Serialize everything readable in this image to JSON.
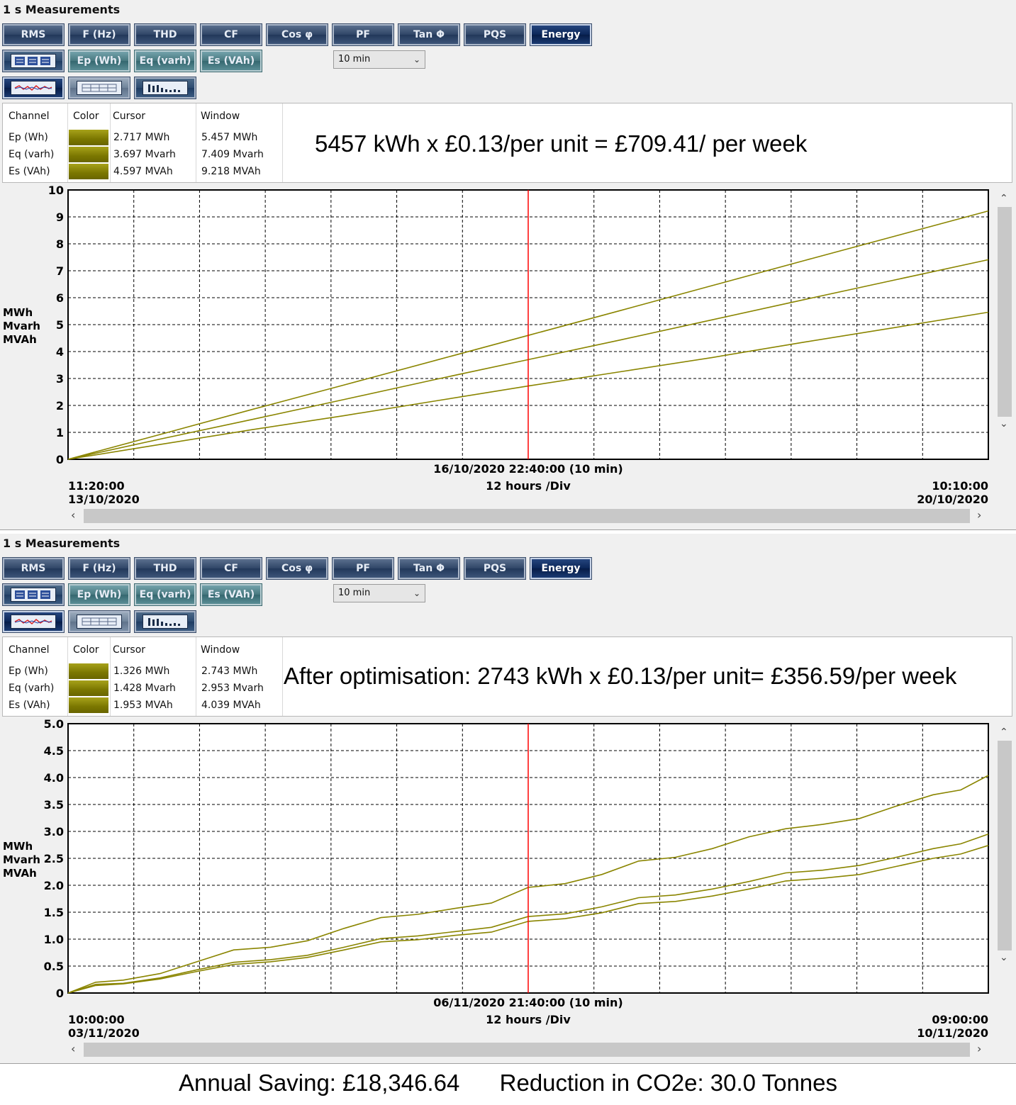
{
  "panels": [
    {
      "title": "1 s Measurements",
      "tabs": [
        "RMS",
        "F (Hz)",
        "THD",
        "CF",
        "Cos φ",
        "PF",
        "Tan Φ",
        "PQS",
        "Energy"
      ],
      "active_tab": "Energy",
      "sub_buttons": [
        "Ep (Wh)",
        "Eq (varh)",
        "Es (VAh)"
      ],
      "interval": "10 min",
      "table": {
        "headers": {
          "channel": "Channel",
          "color": "Color",
          "cursor": "Cursor",
          "window": "Window"
        },
        "rows": [
          {
            "channel": "Ep (Wh)",
            "cursor": "2.717 MWh",
            "window": "5.457 MWh"
          },
          {
            "channel": "Eq (varh)",
            "cursor": "3.697 Mvarh",
            "window": "7.409 Mvarh"
          },
          {
            "channel": "Es (VAh)",
            "cursor": "4.597 MVAh",
            "window": "9.218 MVAh"
          }
        ]
      },
      "annotation": "5457 kWh x £0.13/per unit = £709.41/ per week",
      "chart_data": {
        "type": "line",
        "ylim": [
          0,
          10
        ],
        "yticks": [
          "0",
          "1",
          "2",
          "3",
          "4",
          "5",
          "6",
          "7",
          "8",
          "9",
          "10"
        ],
        "ylabel": [
          "MWh",
          "Mvarh",
          "MVAh"
        ],
        "x_start": {
          "time": "11:20:00",
          "date": "13/10/2020"
        },
        "x_end": {
          "time": "10:10:00",
          "date": "20/10/2020"
        },
        "cursor_label": "16/10/2020 22:40:00 (10 min)",
        "cursor_fraction": 0.5,
        "div_label": "12 hours /Div",
        "line_color": "#8a8500",
        "cursor_color": "#ff0000",
        "series": [
          {
            "name": "Ep (Wh)",
            "x": [
              0,
              0.1,
              0.2,
              0.3,
              0.4,
              0.5,
              0.6,
              0.7,
              0.8,
              0.9,
              1
            ],
            "values": [
              0,
              0.55,
              1.1,
              1.62,
              2.17,
              2.72,
              3.25,
              3.78,
              4.35,
              4.9,
              5.46
            ]
          },
          {
            "name": "Eq (varh)",
            "x": [
              0,
              0.1,
              0.2,
              0.3,
              0.4,
              0.5,
              0.6,
              0.7,
              0.8,
              0.9,
              1
            ],
            "values": [
              0,
              0.75,
              1.48,
              2.22,
              2.97,
              3.7,
              4.43,
              5.18,
              5.93,
              6.67,
              7.41
            ]
          },
          {
            "name": "Es (VAh)",
            "x": [
              0,
              0.1,
              0.2,
              0.3,
              0.4,
              0.5,
              0.6,
              0.7,
              0.8,
              0.9,
              1
            ],
            "values": [
              0,
              0.92,
              1.85,
              2.76,
              3.68,
              4.6,
              5.52,
              6.45,
              7.38,
              8.3,
              9.22
            ]
          }
        ]
      }
    },
    {
      "title": "1 s Measurements",
      "tabs": [
        "RMS",
        "F (Hz)",
        "THD",
        "CF",
        "Cos φ",
        "PF",
        "Tan Φ",
        "PQS",
        "Energy"
      ],
      "active_tab": "Energy",
      "sub_buttons": [
        "Ep (Wh)",
        "Eq (varh)",
        "Es (VAh)"
      ],
      "interval": "10 min",
      "table": {
        "headers": {
          "channel": "Channel",
          "color": "Color",
          "cursor": "Cursor",
          "window": "Window"
        },
        "rows": [
          {
            "channel": "Ep (Wh)",
            "cursor": "1.326 MWh",
            "window": "2.743 MWh"
          },
          {
            "channel": "Eq (varh)",
            "cursor": "1.428 Mvarh",
            "window": "2.953 Mvarh"
          },
          {
            "channel": "Es (VAh)",
            "cursor": "1.953 MVAh",
            "window": "4.039 MVAh"
          }
        ]
      },
      "annotation": "After optimisation: 2743 kWh x £0.13/per unit= £356.59/per week",
      "chart_data": {
        "type": "line",
        "ylim": [
          0,
          5
        ],
        "yticks": [
          "0",
          "0.5",
          "1.0",
          "1.5",
          "2.0",
          "2.5",
          "3.0",
          "3.5",
          "4.0",
          "4.5",
          "5.0"
        ],
        "ylabel": [
          "MWh",
          "Mvarh",
          "MVAh"
        ],
        "x_start": {
          "time": "10:00:00",
          "date": "03/11/2020"
        },
        "x_end": {
          "time": "09:00:00",
          "date": "10/11/2020"
        },
        "cursor_label": "06/11/2020 21:40:00 (10 min)",
        "cursor_fraction": 0.5,
        "div_label": "12 hours /Div",
        "line_color": "#8a8500",
        "cursor_color": "#ff0000",
        "series": [
          {
            "name": "Ep (Wh)",
            "x": [
              0,
              0.03,
              0.06,
              0.1,
              0.14,
              0.18,
              0.22,
              0.26,
              0.3,
              0.34,
              0.38,
              0.42,
              0.46,
              0.5,
              0.54,
              0.58,
              0.62,
              0.66,
              0.7,
              0.74,
              0.78,
              0.82,
              0.86,
              0.9,
              0.94,
              0.97,
              1
            ],
            "values": [
              0,
              0.14,
              0.17,
              0.26,
              0.4,
              0.53,
              0.58,
              0.66,
              0.8,
              0.95,
              0.99,
              1.07,
              1.13,
              1.33,
              1.38,
              1.49,
              1.66,
              1.7,
              1.8,
              1.93,
              2.08,
              2.13,
              2.2,
              2.35,
              2.5,
              2.58,
              2.74
            ]
          },
          {
            "name": "Eq (varh)",
            "x": [
              0,
              0.03,
              0.06,
              0.1,
              0.14,
              0.18,
              0.22,
              0.26,
              0.3,
              0.34,
              0.38,
              0.42,
              0.46,
              0.5,
              0.54,
              0.58,
              0.62,
              0.66,
              0.7,
              0.74,
              0.78,
              0.82,
              0.86,
              0.9,
              0.94,
              0.97,
              1
            ],
            "values": [
              0,
              0.16,
              0.18,
              0.28,
              0.43,
              0.57,
              0.62,
              0.7,
              0.85,
              1.01,
              1.06,
              1.14,
              1.22,
              1.42,
              1.47,
              1.6,
              1.77,
              1.82,
              1.93,
              2.07,
              2.23,
              2.28,
              2.37,
              2.52,
              2.68,
              2.77,
              2.95
            ]
          },
          {
            "name": "Es (VAh)",
            "x": [
              0,
              0.03,
              0.06,
              0.1,
              0.14,
              0.18,
              0.22,
              0.26,
              0.3,
              0.34,
              0.38,
              0.42,
              0.46,
              0.5,
              0.54,
              0.58,
              0.62,
              0.66,
              0.7,
              0.74,
              0.78,
              0.82,
              0.86,
              0.9,
              0.94,
              0.97,
              1
            ],
            "values": [
              0,
              0.2,
              0.24,
              0.36,
              0.58,
              0.8,
              0.85,
              0.97,
              1.2,
              1.4,
              1.46,
              1.57,
              1.67,
              1.96,
              2.03,
              2.2,
              2.45,
              2.52,
              2.68,
              2.9,
              3.05,
              3.13,
              3.24,
              3.47,
              3.68,
              3.77,
              4.04
            ]
          }
        ]
      }
    }
  ],
  "footer": {
    "saving": "Annual Saving: £18,346.64",
    "co2": "Reduction in CO2e: 30.0 Tonnes"
  }
}
